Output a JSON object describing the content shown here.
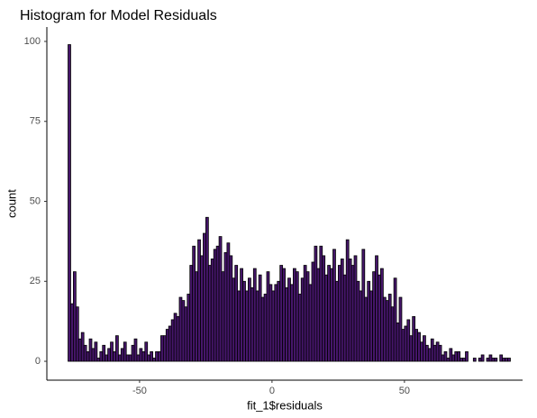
{
  "chart_data": {
    "type": "histogram",
    "title": "Histogram for Model Residuals",
    "x_label": "fit_1$residuals",
    "y_label": "count",
    "bins": [
      -77,
      -76,
      -75,
      -74,
      -73,
      -72,
      -71,
      -70,
      -69,
      -68,
      -67,
      -66,
      -65,
      -64,
      -63,
      -62,
      -61,
      -60,
      -59,
      -58,
      -57,
      -56,
      -55,
      -54,
      -53,
      -52,
      -51,
      -50,
      -49,
      -48,
      -47,
      -46,
      -45,
      -44,
      -43,
      -42,
      -41,
      -40,
      -39,
      -38,
      -37,
      -36,
      -35,
      -34,
      -33,
      -32,
      -31,
      -30,
      -29,
      -28,
      -27,
      -26,
      -25,
      -24,
      -23,
      -22,
      -21,
      -20,
      -19,
      -18,
      -17,
      -16,
      -15,
      -14,
      -13,
      -12,
      -11,
      -10,
      -9,
      -8,
      -7,
      -6,
      -5,
      -4,
      -3,
      -2,
      -1,
      0,
      1,
      2,
      3,
      4,
      5,
      6,
      7,
      8,
      9,
      10,
      11,
      12,
      13,
      14,
      15,
      16,
      17,
      18,
      19,
      20,
      21,
      22,
      23,
      24,
      25,
      26,
      27,
      28,
      29,
      30,
      31,
      32,
      33,
      34,
      35,
      36,
      37,
      38,
      39,
      40,
      41,
      42,
      43,
      44,
      45,
      46,
      47,
      48,
      49,
      50,
      51,
      52,
      53,
      54,
      55,
      56,
      57,
      58,
      59,
      60,
      61,
      62,
      63,
      64,
      65,
      66,
      67,
      68,
      69,
      70,
      71,
      72,
      73,
      74,
      75,
      76,
      77,
      78,
      79,
      80,
      81,
      82,
      83,
      84,
      85,
      86,
      87,
      88,
      89,
      90
    ],
    "values": [
      99,
      18,
      28,
      17,
      7,
      9,
      5,
      3,
      7,
      4,
      6,
      1,
      3,
      5,
      2,
      4,
      6,
      3,
      8,
      2,
      4,
      6,
      2,
      2,
      5,
      7,
      2,
      4,
      3,
      6,
      2,
      3,
      1,
      3,
      3,
      8,
      8,
      10,
      11,
      13,
      15,
      14,
      20,
      19,
      17,
      21,
      30,
      36,
      28,
      38,
      33,
      40,
      45,
      30,
      32,
      35,
      36,
      39,
      28,
      34,
      37,
      33,
      26,
      30,
      22,
      29,
      25,
      22,
      26,
      23,
      29,
      22,
      27,
      20,
      21,
      28,
      24,
      22,
      24,
      25,
      30,
      29,
      23,
      26,
      24,
      29,
      28,
      21,
      26,
      30,
      28,
      24,
      31,
      36,
      29,
      36,
      33,
      27,
      30,
      29,
      35,
      25,
      30,
      32,
      27,
      38,
      32,
      30,
      33,
      25,
      22,
      35,
      20,
      25,
      22,
      28,
      33,
      27,
      29,
      20,
      19,
      21,
      17,
      26,
      12,
      20,
      10,
      11,
      13,
      8,
      14,
      10,
      9,
      6,
      8,
      5,
      4,
      7,
      5,
      6,
      5,
      2,
      3,
      1,
      4,
      2,
      3,
      3,
      1,
      1,
      3,
      0,
      0,
      1,
      0,
      1,
      2,
      0,
      1,
      2,
      1,
      1,
      0,
      2,
      1,
      1,
      1
    ],
    "color": "#46166b",
    "edge_color": "#000000",
    "xlim": [
      -85,
      94.6
    ],
    "xticks": [
      -50,
      0,
      50
    ],
    "ylim": [
      -5.9,
      104.5
    ],
    "yticks": [
      0,
      25,
      50,
      75,
      100
    ],
    "grid": false
  }
}
